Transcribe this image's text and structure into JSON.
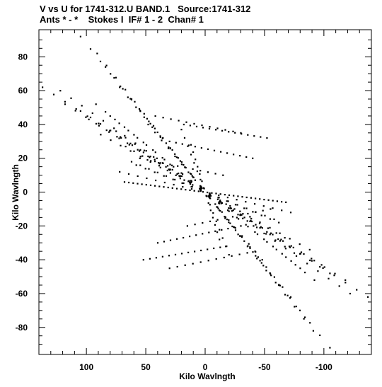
{
  "chart_data": {
    "type": "scatter",
    "title": "V vs U for 1741-312.U BAND.1   Source:1741-312",
    "subtitle": "Ants * - *    Stokes I  IF# 1 - 2  Chan# 1",
    "xlabel": "Kilo Wavlngth",
    "ylabel": "Kilo Wavlngth",
    "xlim": [
      140,
      -140
    ],
    "ylim": [
      -96,
      96
    ],
    "x_ticks": [
      100,
      50,
      0,
      -50,
      -100
    ],
    "x_tick_labels": [
      "100",
      "50",
      "0",
      "-50",
      "-100"
    ],
    "y_ticks": [
      80,
      60,
      40,
      20,
      0,
      -20,
      -40,
      -60,
      -80
    ],
    "y_tick_labels": [
      "80",
      "60",
      "40",
      "20",
      "0",
      "-20",
      "-40",
      "-60",
      "-80"
    ],
    "grid": false,
    "marker_color": "#000000",
    "tracks": [
      {
        "start": [
          105,
          92
        ],
        "end": [
          -105,
          -92
        ],
        "n": 26
      },
      {
        "start": [
          91,
          82
        ],
        "end": [
          -91,
          -82
        ],
        "n": 24
      },
      {
        "start": [
          84,
          74
        ],
        "end": [
          -84,
          -74
        ],
        "n": 24
      },
      {
        "start": [
          72,
          62
        ],
        "end": [
          -72,
          -62
        ],
        "n": 22
      },
      {
        "start": [
          62,
          55
        ],
        "end": [
          -62,
          -55
        ],
        "n": 20
      },
      {
        "start": [
          48,
          40
        ],
        "end": [
          -48,
          -40
        ],
        "n": 18
      },
      {
        "start": [
          137,
          62
        ],
        "end": [
          -137,
          -62
        ],
        "n": 30
      },
      {
        "start": [
          122,
          60
        ],
        "end": [
          -122,
          -60
        ],
        "n": 28
      },
      {
        "start": [
          118,
          52
        ],
        "end": [
          -118,
          -52
        ],
        "n": 28
      },
      {
        "start": [
          105,
          48
        ],
        "end": [
          -105,
          -48
        ],
        "n": 26
      },
      {
        "start": [
          98,
          43
        ],
        "end": [
          -98,
          -43
        ],
        "n": 24
      },
      {
        "start": [
          88,
          34
        ],
        "end": [
          -88,
          -34
        ],
        "n": 22
      },
      {
        "start": [
          92,
          52
        ],
        "end": [
          -92,
          -52
        ],
        "n": 24
      },
      {
        "start": [
          80,
          45
        ],
        "end": [
          -80,
          -45
        ],
        "n": 22
      },
      {
        "start": [
          75,
          36
        ],
        "end": [
          -75,
          -36
        ],
        "n": 20
      },
      {
        "start": [
          67,
          27
        ],
        "end": [
          -67,
          -27
        ],
        "n": 20
      },
      {
        "start": [
          62,
          18
        ],
        "end": [
          -62,
          -18
        ],
        "n": 18
      },
      {
        "start": [
          68,
          6
        ],
        "end": [
          -68,
          -6
        ],
        "n": 38
      },
      {
        "start": [
          72,
          12
        ],
        "end": [
          -72,
          -12
        ],
        "n": 20
      },
      {
        "start": [
          58,
          16
        ],
        "end": [
          -58,
          -16
        ],
        "n": 16
      },
      {
        "start": [
          42,
          45
        ],
        "end": [
          -30,
          35
        ],
        "n": 12
      },
      {
        "start": [
          18,
          40
        ],
        "end": [
          -52,
          32
        ],
        "n": 14
      },
      {
        "start": [
          30,
          30
        ],
        "end": [
          -40,
          20
        ],
        "n": 14
      },
      {
        "start": [
          55,
          20
        ],
        "end": [
          -15,
          10
        ],
        "n": 12
      },
      {
        "start": [
          30,
          -45
        ],
        "end": [
          -42,
          -35
        ],
        "n": 12
      },
      {
        "start": [
          52,
          -40
        ],
        "end": [
          -18,
          -32
        ],
        "n": 14
      },
      {
        "start": [
          40,
          -30
        ],
        "end": [
          -30,
          -20
        ],
        "n": 14
      },
      {
        "start": [
          15,
          -20
        ],
        "end": [
          -55,
          -10
        ],
        "n": 12
      },
      {
        "start": [
          20,
          37
        ],
        "end": [
          -20,
          -37
        ],
        "n": 16
      },
      {
        "start": [
          12,
          28
        ],
        "end": [
          -12,
          -28
        ],
        "n": 14
      }
    ]
  }
}
